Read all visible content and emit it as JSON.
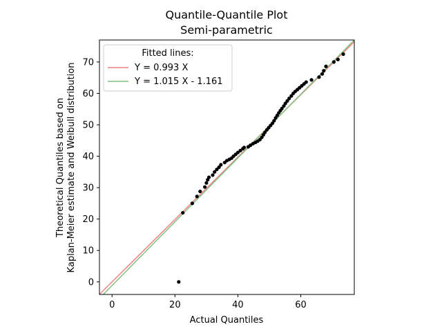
{
  "chart_data": {
    "type": "scatter",
    "title": "Quantile-Quantile Plot",
    "subtitle": "Semi-parametric",
    "xlabel": "Actual Quantiles",
    "ylabel": [
      "Theoretical Quantiles based on",
      "Kaplan-Meier estimate and Weibull distribution"
    ],
    "xlim": [
      -4,
      77
    ],
    "ylim": [
      -4,
      77
    ],
    "xticks": [
      0,
      20,
      40,
      60
    ],
    "yticks": [
      0,
      10,
      20,
      30,
      40,
      50,
      60,
      70
    ],
    "grid": false,
    "legend": {
      "title": "Fitted lines:",
      "position": "top-left",
      "entries": [
        {
          "label": "Y = 0.993 X",
          "color": "#f08080"
        },
        {
          "label": "Y = 1.015 X - 1.161",
          "color": "#80c080"
        }
      ]
    },
    "lines": [
      {
        "slope": 0.993,
        "intercept": 0,
        "color": "#f08080"
      },
      {
        "slope": 1.015,
        "intercept": -1.161,
        "color": "#80c080"
      }
    ],
    "marker_color": "#000000",
    "points": [
      [
        21.2,
        0.0
      ],
      [
        22.5,
        22.0
      ],
      [
        25.5,
        25.0
      ],
      [
        27.0,
        27.2
      ],
      [
        28.0,
        28.8
      ],
      [
        29.5,
        30.2
      ],
      [
        30.0,
        31.5
      ],
      [
        30.4,
        32.5
      ],
      [
        30.8,
        33.3
      ],
      [
        32.0,
        34.0
      ],
      [
        32.6,
        35.0
      ],
      [
        33.3,
        35.8
      ],
      [
        34.0,
        36.5
      ],
      [
        34.6,
        37.3
      ],
      [
        35.8,
        38.0
      ],
      [
        36.5,
        38.6
      ],
      [
        37.3,
        39.0
      ],
      [
        38.0,
        39.4
      ],
      [
        38.6,
        40.0
      ],
      [
        39.3,
        40.6
      ],
      [
        40.0,
        41.2
      ],
      [
        40.8,
        41.8
      ],
      [
        41.6,
        42.4
      ],
      [
        42.0,
        42.8
      ],
      [
        43.3,
        43.0
      ],
      [
        44.0,
        43.5
      ],
      [
        44.8,
        44.0
      ],
      [
        45.6,
        44.4
      ],
      [
        46.3,
        44.8
      ],
      [
        47.0,
        45.3
      ],
      [
        47.6,
        46.0
      ],
      [
        48.1,
        46.8
      ],
      [
        48.6,
        47.6
      ],
      [
        49.2,
        48.4
      ],
      [
        49.8,
        49.1
      ],
      [
        50.4,
        49.8
      ],
      [
        51.0,
        50.5
      ],
      [
        51.5,
        51.3
      ],
      [
        52.0,
        52.2
      ],
      [
        52.5,
        53.0
      ],
      [
        53.0,
        53.8
      ],
      [
        53.5,
        54.5
      ],
      [
        54.0,
        55.2
      ],
      [
        54.6,
        56.0
      ],
      [
        55.1,
        56.8
      ],
      [
        55.7,
        57.6
      ],
      [
        56.3,
        58.4
      ],
      [
        57.0,
        59.2
      ],
      [
        57.6,
        60.0
      ],
      [
        58.2,
        60.6
      ],
      [
        58.9,
        61.2
      ],
      [
        59.6,
        61.8
      ],
      [
        60.3,
        62.4
      ],
      [
        61.0,
        63.0
      ],
      [
        61.7,
        63.6
      ],
      [
        63.4,
        64.3
      ],
      [
        65.8,
        65.2
      ],
      [
        66.8,
        66.2
      ],
      [
        67.3,
        67.2
      ],
      [
        68.0,
        68.6
      ],
      [
        70.5,
        70.0
      ],
      [
        71.8,
        70.8
      ],
      [
        73.5,
        72.5
      ]
    ]
  }
}
